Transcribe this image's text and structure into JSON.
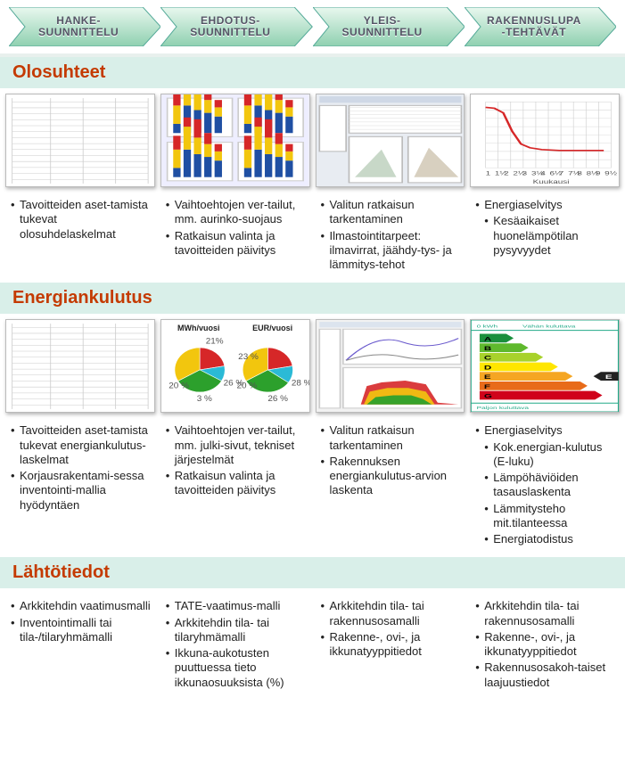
{
  "colors": {
    "stage_fill_top": "#d4f0df",
    "stage_fill_bot": "#8fd0b0",
    "stage_stroke": "#4a6",
    "section_bg": "#d9efe9",
    "section_text": "#c43a00",
    "chart_red": "#d62728",
    "chart_yellow": "#f2c60e",
    "chart_blue": "#1f4fa3",
    "chart_green": "#2ca02c",
    "chart_cyan": "#2bbad6",
    "grid": "#d0d0d0",
    "rating": {
      "A": "#1a8f3c",
      "B": "#5fb92d",
      "C": "#a8d22b",
      "D": "#ffe600",
      "E": "#f5a623",
      "F": "#e86b1a",
      "G": "#d0021b"
    }
  },
  "stages": [
    {
      "l1": "HANKE-",
      "l2": "SUUNNITTELU"
    },
    {
      "l1": "EHDOTUS-",
      "l2": "SUUNNITTELU"
    },
    {
      "l1": "YLEIS-",
      "l2": "SUUNNITTELU"
    },
    {
      "l1": "RAKENNUSLUPA",
      "l2": "-TEHTÄVÄT"
    }
  ],
  "sections": [
    {
      "title": "Olosuhteet",
      "thumbs": [
        "table",
        "barcharts",
        "screenshot",
        "linechart"
      ],
      "cols": [
        [
          "Tavoitteiden aset-tamista tukevat olosuhdelaskelmat"
        ],
        [
          "Vaihtoehtojen ver-tailut, mm. aurinko-suojaus",
          "Ratkaisun valinta ja tavoitteiden päivitys"
        ],
        [
          "Valitun ratkaisun tarkentaminen",
          "Ilmastointitarpeet: ilmavirrat, jäähdy-tys- ja lämmitys-tehot"
        ],
        [
          "Energiaselvitys",
          {
            "sub": true,
            "t": "Kesäaikaiset huonelämpötilan pysyvyydet"
          }
        ]
      ]
    },
    {
      "title": "Energiankulutus",
      "thumbs": [
        "table",
        "piecharts",
        "areaplot",
        "energyrating"
      ],
      "cols": [
        [
          "Tavoitteiden aset-tamista tukevat energiankulutus-laskelmat",
          "Korjausrakentami-sessa inventointi-mallia hyödyntäen"
        ],
        [
          "Vaihtoehtojen ver-tailut, mm. julki-sivut, tekniset järjestelmät",
          "Ratkaisun valinta ja tavoitteiden päivitys"
        ],
        [
          "Valitun ratkaisun tarkentaminen",
          "Rakennuksen energiankulutus-arvion laskenta"
        ],
        [
          "Energiaselvitys",
          {
            "sub": true,
            "t": "Kok.energian-kulutus (E-luku)"
          },
          {
            "sub": true,
            "t": "Lämpöhäviöiden tasauslaskenta"
          },
          {
            "sub": true,
            "t": "Lämmitysteho mit.tilanteessa"
          },
          {
            "sub": true,
            "t": "Energiatodistus"
          }
        ]
      ]
    },
    {
      "title": "Lähtötiedot",
      "thumbs": null,
      "cols": [
        [
          "Arkkitehdin vaatimusmalli",
          "Inventointimalli tai tila-/tilaryhmämalli"
        ],
        [
          "TATE-vaatimus-malli",
          "Arkkitehdin tila- tai tilaryhmämalli",
          "Ikkuna-aukotusten puuttuessa tieto ikkunaosuuksista (%)"
        ],
        [
          "Arkkitehdin tila- tai rakennusosamalli",
          "Rakenne-, ovi-, ja ikkunatyyppitiedot"
        ],
        [
          "Arkkitehdin tila- tai rakennusosamalli",
          "Rakenne-, ovi-, ja ikkunatyyppitiedot",
          "Rakennusosakoh-taiset laajuustiedot"
        ]
      ]
    }
  ],
  "pie_labels": [
    "MWh/vuosi",
    "EUR/vuosi"
  ],
  "pies": {
    "left": {
      "segments": [
        {
          "c": "#d62728",
          "a": 80
        },
        {
          "c": "#2bbad6",
          "a": 40
        },
        {
          "c": "#2ca02c",
          "a": 120
        },
        {
          "c": "#f2c60e",
          "a": 120
        }
      ],
      "pct": [
        "20 %",
        "21%",
        "26 %",
        "3 %"
      ]
    },
    "right": {
      "segments": [
        {
          "c": "#d62728",
          "a": 80
        },
        {
          "c": "#2bbad6",
          "a": 45
        },
        {
          "c": "#2ca02c",
          "a": 115
        },
        {
          "c": "#f2c60e",
          "a": 120
        }
      ],
      "pct": [
        "20 %",
        "23 %",
        "28 %",
        "26 %"
      ]
    }
  },
  "linechart": {
    "xlabel": "Kuukausi",
    "xticks": [
      "1",
      "1½",
      "2",
      "2½",
      "3",
      "3½",
      "4",
      "6½",
      "7",
      "7½",
      "8",
      "8½",
      "9",
      "9½"
    ],
    "line_color": "#d62728",
    "grid_color": "#d0d0d0",
    "bg": "#ffffff"
  },
  "rating_labels": [
    "A",
    "B",
    "C",
    "D",
    "E",
    "F",
    "G"
  ],
  "rating_selected": "E",
  "rating_footer": "Paljon kuluttava",
  "rating_header_left": "0 kWh",
  "rating_header_center": "Vähän kuluttava"
}
